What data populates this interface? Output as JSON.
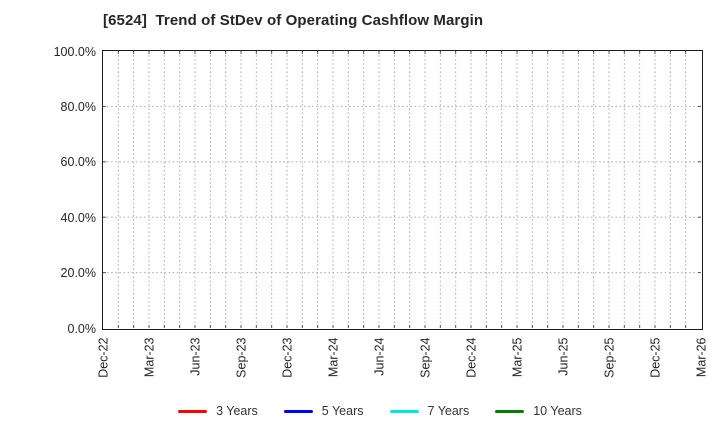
{
  "chart_data": {
    "type": "line",
    "title": "[6524]  Trend of StDev of Operating Cashflow Margin",
    "xlabel": "",
    "ylabel": "",
    "x_axis": {
      "tick_labels": [
        "Dec-22",
        "Mar-23",
        "Jun-23",
        "Sep-23",
        "Dec-23",
        "Mar-24",
        "Jun-24",
        "Sep-24",
        "Dec-24",
        "Mar-25",
        "Jun-25",
        "Sep-25",
        "Dec-25",
        "Mar-26"
      ],
      "tick_interval": "quarterly",
      "minor_gridline_interval": "monthly",
      "months_span": 39
    },
    "y_axis": {
      "lim": [
        0,
        100
      ],
      "ticks": [
        0,
        20,
        40,
        60,
        80,
        100
      ],
      "tick_labels": [
        "0.0%",
        "20.0%",
        "40.0%",
        "60.0%",
        "80.0%",
        "100.0%"
      ]
    },
    "grid": {
      "on": true,
      "style": "dotted",
      "color": "#a8a8a8"
    },
    "legend": {
      "position": "bottom"
    },
    "series": [
      {
        "name": "3 Years",
        "color": "#ff0000",
        "values": []
      },
      {
        "name": "5 Years",
        "color": "#0000ff",
        "values": []
      },
      {
        "name": "7 Years",
        "color": "#00e5e5",
        "values": []
      },
      {
        "name": "10 Years",
        "color": "#008000",
        "values": []
      }
    ],
    "plotted_data_visible": false
  }
}
